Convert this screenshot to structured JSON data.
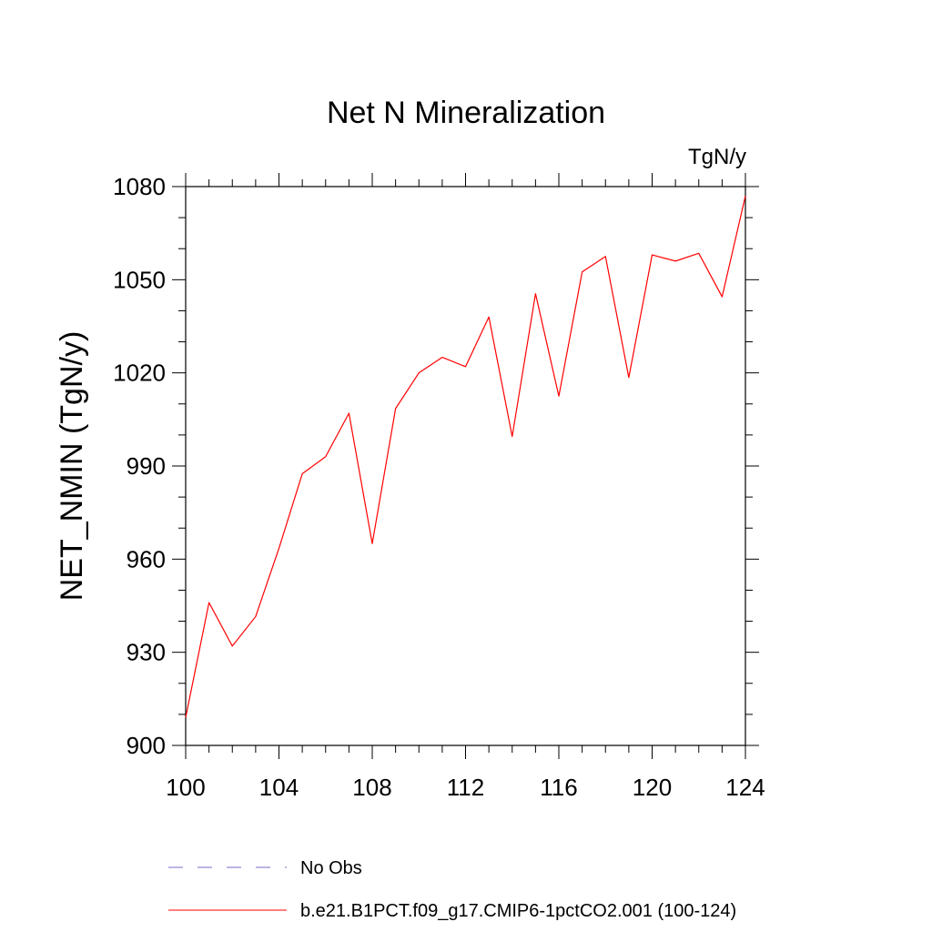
{
  "chart_data": {
    "type": "line",
    "title": "Net N Mineralization",
    "units_label": "TgN/y",
    "ylabel": "NET_NMIN  (TgN/y)",
    "xlabel": "",
    "xlim": [
      100,
      124
    ],
    "ylim": [
      900,
      1080
    ],
    "x_ticks": [
      100,
      104,
      108,
      112,
      116,
      120,
      124
    ],
    "y_ticks": [
      900,
      930,
      960,
      990,
      1020,
      1050,
      1080
    ],
    "x_minor_step": 1,
    "y_minor_step": 10,
    "grid": false,
    "legend_position": "bottom",
    "series": [
      {
        "name": "b.e21.B1PCT.f09_g17.CMIP6-1pctCO2.001 (100-124)",
        "color": "#ff0000",
        "style": "solid",
        "x": [
          100,
          101,
          102,
          103,
          104,
          105,
          106,
          107,
          108,
          109,
          110,
          111,
          112,
          113,
          114,
          115,
          116,
          117,
          118,
          119,
          120,
          121,
          122,
          123,
          124
        ],
        "y": [
          909,
          946,
          932,
          941.5,
          963.5,
          987.5,
          993,
          1007,
          965,
          1008.5,
          1020,
          1025,
          1022,
          1038,
          999.5,
          1045.5,
          1012.5,
          1052.5,
          1057.5,
          1018.5,
          1058,
          1056,
          1058.5,
          1044.5,
          1077
        ]
      }
    ],
    "legend": [
      {
        "label": "No Obs",
        "color": "#7b68c8",
        "style": "dashed"
      },
      {
        "label": "b.e21.B1PCT.f09_g17.CMIP6-1pctCO2.001 (100-124)",
        "color": "#ff0000",
        "style": "solid"
      }
    ]
  }
}
